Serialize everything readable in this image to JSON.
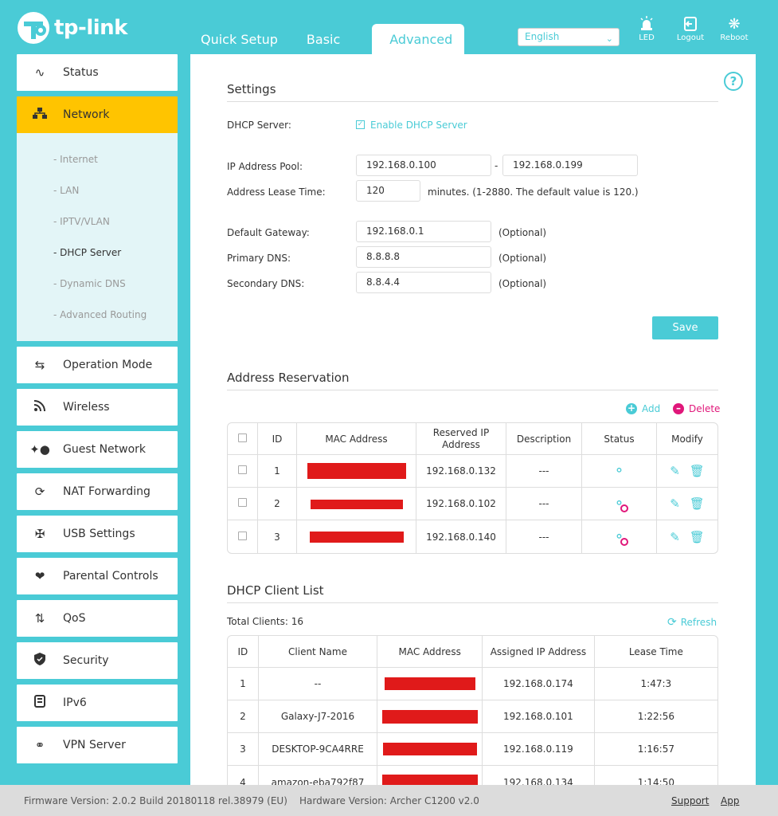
{
  "header": {
    "brand": "tp-link",
    "tabs": [
      {
        "label": "Quick Setup"
      },
      {
        "label": "Basic"
      },
      {
        "label": "Advanced"
      }
    ],
    "language": "English",
    "icons": [
      {
        "label": "LED",
        "icon": "bulb-icon"
      },
      {
        "label": "Logout",
        "icon": "logout-icon"
      },
      {
        "label": "Reboot",
        "icon": "reboot-icon"
      }
    ]
  },
  "sidebar": {
    "items": [
      {
        "label": "Status",
        "icon": "status-icon"
      },
      {
        "label": "Network",
        "icon": "network-icon"
      },
      {
        "label": "Operation Mode",
        "icon": "operation-mode-icon"
      },
      {
        "label": "Wireless",
        "icon": "wireless-icon"
      },
      {
        "label": "Guest Network",
        "icon": "guest-network-icon"
      },
      {
        "label": "NAT Forwarding",
        "icon": "nat-icon"
      },
      {
        "label": "USB Settings",
        "icon": "usb-icon"
      },
      {
        "label": "Parental Controls",
        "icon": "parental-icon"
      },
      {
        "label": "QoS",
        "icon": "qos-icon"
      },
      {
        "label": "Security",
        "icon": "shield-icon"
      },
      {
        "label": "IPv6",
        "icon": "ipv6-icon"
      },
      {
        "label": "VPN Server",
        "icon": "vpn-icon"
      }
    ],
    "network_sub": [
      "- Internet",
      "- LAN",
      "- IPTV/VLAN",
      "- DHCP Server",
      "- Dynamic DNS",
      "- Advanced Routing"
    ]
  },
  "settings": {
    "title": "Settings",
    "dhcp_label": "DHCP Server:",
    "dhcp_checkbox": "Enable DHCP Server",
    "pool_label": "IP Address Pool:",
    "pool_start": "192.168.0.100",
    "pool_sep": "-",
    "pool_end": "192.168.0.199",
    "lease_label": "Address Lease Time:",
    "lease_value": "120",
    "lease_hint": "minutes. (1-2880. The default value is 120.)",
    "gateway_label": "Default Gateway:",
    "gateway_value": "192.168.0.1",
    "pdns_label": "Primary DNS:",
    "pdns_value": "8.8.8.8",
    "sdns_label": "Secondary DNS:",
    "sdns_value": "8.8.4.4",
    "optional": "(Optional)",
    "save": "Save"
  },
  "reservation": {
    "title": "Address Reservation",
    "add": "Add",
    "delete": "Delete",
    "columns": [
      "ID",
      "MAC Address",
      "Reserved IP Address",
      "Description",
      "Status",
      "Modify"
    ],
    "rows": [
      {
        "id": "1",
        "ip": "192.168.0.132",
        "desc": "---",
        "status": "on"
      },
      {
        "id": "2",
        "ip": "192.168.0.102",
        "desc": "---",
        "status": "off"
      },
      {
        "id": "3",
        "ip": "192.168.0.140",
        "desc": "---",
        "status": "off"
      }
    ]
  },
  "clients": {
    "title": "DHCP Client List",
    "total_label": "Total Clients: 16",
    "refresh": "Refresh",
    "columns": [
      "ID",
      "Client Name",
      "MAC Address",
      "Assigned IP Address",
      "Lease Time"
    ],
    "rows": [
      {
        "id": "1",
        "name": "--",
        "ip": "192.168.0.174",
        "lease": "1:47:3"
      },
      {
        "id": "2",
        "name": "Galaxy-J7-2016",
        "ip": "192.168.0.101",
        "lease": "1:22:56"
      },
      {
        "id": "3",
        "name": "DESKTOP-9CA4RRE",
        "ip": "192.168.0.119",
        "lease": "1:16:57"
      },
      {
        "id": "4",
        "name": "amazon-eba792f87",
        "ip": "192.168.0.134",
        "lease": "1:14:50"
      }
    ]
  },
  "footer": {
    "firmware": "Firmware Version: 2.0.2 Build 20180118 rel.38979 (EU)",
    "hardware": "Hardware Version: Archer C1200 v2.0",
    "support": "Support",
    "app": "App"
  },
  "colors": {
    "accent": "#4acbd6",
    "active": "#ffc400",
    "redaction": "#e01a1a"
  }
}
